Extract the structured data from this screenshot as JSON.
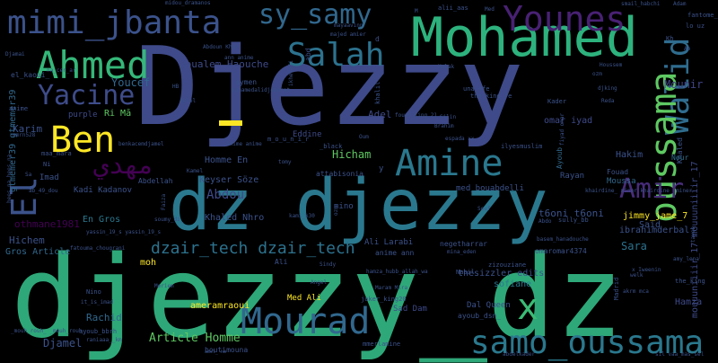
{
  "words": [
    {
      "text": "Djezzy",
      "color": "#3e4a89"
    },
    {
      "text": "djezzy_dz",
      "color": "#2ea879"
    },
    {
      "text": "dz djezzy",
      "color": "#2a788e"
    },
    {
      "text": "Mohamed",
      "color": "#2db27d"
    },
    {
      "text": "mimi_jbanta",
      "color": "#3b528b"
    },
    {
      "text": "sy_samy",
      "color": "#31688e"
    },
    {
      "text": "Younes",
      "color": "#482173"
    },
    {
      "text": "Ahmed",
      "color": "#35b779"
    },
    {
      "text": "Salah",
      "color": "#2c728e"
    },
    {
      "text": "Yacine",
      "color": "#3e4c8a"
    },
    {
      "text": "Ben",
      "color": "#fde725"
    },
    {
      "text": "Amine",
      "color": "#2a788e"
    },
    {
      "text": "Walid",
      "color": "#2f6c8e"
    },
    {
      "text": "oussama",
      "color": "#5ec962"
    },
    {
      "text": "Amir",
      "color": "#472c7a"
    },
    {
      "text": "Mourad",
      "color": "#31688e"
    },
    {
      "text": "samo_oussama",
      "color": "#2a788e"
    },
    {
      "text": "x",
      "color": "#3bbb75"
    },
    {
      "text": "El",
      "color": "#3b528b"
    },
    {
      "text": "مهدي",
      "color": "#440154"
    },
    {
      "text": "dzair_tech dzair_tech",
      "color": "#2c728e"
    },
    {
      "text": "Hicham",
      "color": "#5ec962"
    },
    {
      "text": "Karim",
      "color": "#3b528b"
    },
    {
      "text": "Boualem Haouche",
      "color": "#3e4a89"
    },
    {
      "text": "Youcef",
      "color": "#31688e"
    },
    {
      "text": "Article Homme",
      "color": "#5ec962"
    },
    {
      "text": "t6oni t6oni",
      "color": "#3b528b"
    },
    {
      "text": "Sara",
      "color": "#2c728e"
    },
    {
      "text": "Abdou",
      "color": "#3e4a89"
    },
    {
      "text": "Rachid",
      "color": "#31688e"
    },
    {
      "text": "Djamel",
      "color": "#3b528b"
    },
    {
      "text": "Hamza",
      "color": "#3e4a89"
    },
    {
      "text": "Mounir",
      "color": "#414487"
    },
    {
      "text": "Hakim",
      "color": "#3b528b"
    },
    {
      "text": "Adel",
      "color": "#3e4a89"
    },
    {
      "text": "Eddine",
      "color": "#3e4a89"
    },
    {
      "text": "Med Ali",
      "color": "#fde725"
    },
    {
      "text": "Sad Dam",
      "color": "#3e4a89"
    },
    {
      "text": "sofiane",
      "color": "#2a788e"
    },
    {
      "text": "Said",
      "color": "#3b528b"
    },
    {
      "text": "Rayan",
      "color": "#3b528b"
    },
    {
      "text": "Moussa",
      "color": "#31688e"
    },
    {
      "text": "Khaled Nhro",
      "color": "#3b528b"
    },
    {
      "text": "Keyser Söze",
      "color": "#3b528b"
    },
    {
      "text": "othmane1981",
      "color": "#440154"
    },
    {
      "text": "Hichem",
      "color": "#3b528b"
    },
    {
      "text": "Gros Article",
      "color": "#31688e"
    },
    {
      "text": "En Gros",
      "color": "#2a788e"
    },
    {
      "text": "moh",
      "color": "#fde725"
    },
    {
      "text": "Ri Mā",
      "color": "#5ec962"
    },
    {
      "text": "purple",
      "color": "#3e4a89"
    },
    {
      "text": "Homme En",
      "color": "#3b528b"
    },
    {
      "text": "Kadi Kadanov",
      "color": "#3b528b"
    },
    {
      "text": "Abdellah",
      "color": "#3b528b"
    },
    {
      "text": "Imad",
      "color": "#3b528b"
    },
    {
      "text": "Ali Larabi",
      "color": "#3b528b"
    },
    {
      "text": "ameramraoui",
      "color": "#fde725"
    },
    {
      "text": "thesizzler edits",
      "color": "#3b528b"
    },
    {
      "text": "Dal Queen",
      "color": "#3b528b"
    },
    {
      "text": "ayoub_dsn_",
      "color": "#3b528b"
    },
    {
      "text": "omar iyad",
      "color": "#3e4a89"
    },
    {
      "text": "jimmy_jame_7",
      "color": "#fde725"
    },
    {
      "text": "ibrahimderbal",
      "color": "#3b528b"
    },
    {
      "text": "gtmemer39 gtmemer39",
      "color": "#31688e"
    },
    {
      "text": "mouuuniiiir_17 mouuuniiiir_17",
      "color": "#3e4a89"
    },
    {
      "text": "Fouad",
      "color": "#3b528b"
    },
    {
      "text": "Ayoub",
      "color": "#31688e"
    },
    {
      "text": "Khaled",
      "color": "#3b528b"
    },
    {
      "text": "Nour",
      "color": "#2c728e"
    },
    {
      "text": "Kader",
      "color": "#3b528b"
    },
    {
      "text": "Madrid",
      "color": "#3b528b"
    },
    {
      "text": "Nabil",
      "color": "#3b528b"
    },
    {
      "text": "zizouziane",
      "color": "#3b528b"
    },
    {
      "text": "anime ann",
      "color": "#3b528b"
    },
    {
      "text": "omaromar4374",
      "color": "#3b528b"
    },
    {
      "text": "negetharrar",
      "color": "#3b528b"
    },
    {
      "text": "sully_bb",
      "color": "#3b528b"
    },
    {
      "text": "una_efe",
      "color": "#3b528b"
    },
    {
      "text": "the_king fe",
      "color": "#3b528b"
    },
    {
      "text": "fouad_king_21",
      "color": "#3b528b"
    },
    {
      "text": "alii_aas",
      "color": "#3b528b"
    },
    {
      "text": "mayaavinn",
      "color": "#3b528b"
    },
    {
      "text": "ann anime",
      "color": "#3b528b"
    },
    {
      "text": "aymen",
      "color": "#3b528b"
    },
    {
      "text": "Abdoun Khan",
      "color": "#3b528b"
    },
    {
      "text": "el_kaoui_",
      "color": "#3b528b"
    },
    {
      "text": "midou_dramanos",
      "color": "#3b528b"
    },
    {
      "text": "Djamai",
      "color": "#3b528b"
    },
    {
      "text": "Ablel",
      "color": "#3b528b"
    },
    {
      "text": "Silin",
      "color": "#3b528b"
    },
    {
      "text": "Brahim",
      "color": "#3b528b"
    },
    {
      "text": "espada xx",
      "color": "#3b528b"
    },
    {
      "text": "ilyesmuslim",
      "color": "#3b528b"
    },
    {
      "text": "smail_habchi",
      "color": "#3b528b"
    },
    {
      "text": "Adam",
      "color": "#3b528b"
    },
    {
      "text": "fantome_ee",
      "color": "#3b528b"
    },
    {
      "text": "lo uz",
      "color": "#3b528b"
    },
    {
      "text": "Kh",
      "color": "#3b528b"
    },
    {
      "text": "Ab",
      "color": "#3b528b"
    },
    {
      "text": "djking",
      "color": "#3b528b"
    },
    {
      "text": "Reda",
      "color": "#3b528b"
    },
    {
      "text": "ozm",
      "color": "#3b528b"
    },
    {
      "text": "Houssem",
      "color": "#3b528b"
    },
    {
      "text": "Malak",
      "color": "#3b528b"
    },
    {
      "text": "khairdine_ miner khairdine_ miner",
      "color": "#3b528b"
    },
    {
      "text": "tayeb",
      "color": "#3b528b"
    },
    {
      "text": "Abdo",
      "color": "#3b528b"
    },
    {
      "text": "basem_hanadouche",
      "color": "#3b528b"
    },
    {
      "text": "x Iweenin",
      "color": "#3b528b"
    },
    {
      "text": "akrm mca",
      "color": "#3b528b"
    },
    {
      "text": "Meriem",
      "color": "#3b528b"
    },
    {
      "text": "Angel",
      "color": "#3b528b"
    },
    {
      "text": "joker_king20",
      "color": "#3b528b"
    },
    {
      "text": "Maram Mira",
      "color": "#3b528b"
    },
    {
      "text": "Nino",
      "color": "#3b528b"
    },
    {
      "text": "it_is_imad",
      "color": "#3b528b"
    },
    {
      "text": "ayoub_bbrh",
      "color": "#3b528b"
    },
    {
      "text": "boutimouna",
      "color": "#3b528b"
    },
    {
      "text": "amel_ hm",
      "color": "#3b528b"
    },
    {
      "text": "mmerlamine",
      "color": "#3b528b"
    },
    {
      "text": "ikhelafi",
      "color": "#3b528b"
    },
    {
      "text": "majed amier",
      "color": "#3b528b"
    },
    {
      "text": "attabisonia",
      "color": "#3b528b"
    },
    {
      "text": "med_bouabdelli",
      "color": "#3b528b"
    },
    {
      "text": "yassin_19_s yassin_19_s",
      "color": "#3b528b"
    },
    {
      "text": "soumy_dz_",
      "color": "#3b528b"
    },
    {
      "text": "Faiza",
      "color": "#3b528b"
    },
    {
      "text": "Souf",
      "color": "#3b528b"
    },
    {
      "text": "mina_eden",
      "color": "#3b528b"
    },
    {
      "text": "welk",
      "color": "#3b528b"
    },
    {
      "text": "sil vaa_mas_sel",
      "color": "#3b528b"
    },
    {
      "text": "abdelkader",
      "color": "#3b528b"
    },
    {
      "text": "_mouh_rouh_ _mouh_rouh_",
      "color": "#3b528b"
    },
    {
      "text": "hees_na hees_na",
      "color": "#3b528b"
    },
    {
      "text": "mmrn528",
      "color": "#3b528b"
    },
    {
      "text": "ab_49_dou",
      "color": "#3b528b"
    },
    {
      "text": "Sa",
      "color": "#3b528b"
    },
    {
      "text": "Ni",
      "color": "#3b528b"
    },
    {
      "text": "na_cer_ar",
      "color": "#3b528b"
    },
    {
      "text": "mohamedalidjebarat",
      "color": "#3b528b"
    },
    {
      "text": "raniaaa__km",
      "color": "#3b528b"
    },
    {
      "text": "fatouma_chougrani",
      "color": "#3b528b"
    },
    {
      "text": "maa_mara",
      "color": "#3b528b"
    },
    {
      "text": "anime anime",
      "color": "#3b528b"
    },
    {
      "text": "benkacemdjamel",
      "color": "#3b528b"
    },
    {
      "text": "hamza_hubb_allah_wa",
      "color": "#3b528b"
    },
    {
      "text": "Ali",
      "color": "#3b528b"
    },
    {
      "text": "Med",
      "color": "#3b528b"
    },
    {
      "text": "M",
      "color": "#3b528b"
    },
    {
      "text": "HB",
      "color": "#3b528b"
    },
    {
      "text": "abd",
      "color": "#3b528b"
    },
    {
      "text": "_black",
      "color": "#3b528b"
    },
    {
      "text": "Kamel",
      "color": "#3b528b"
    },
    {
      "text": "m_o_u_n_i_r",
      "color": "#3b528b"
    },
    {
      "text": "khalil",
      "color": "#3b528b"
    },
    {
      "text": "fiyad omar",
      "color": "#3b528b"
    },
    {
      "text": "amy_lena",
      "color": "#3b528b"
    },
    {
      "text": "ozm",
      "color": "#3b528b"
    },
    {
      "text": "kami_k30",
      "color": "#3b528b"
    },
    {
      "text": "tomy",
      "color": "#3b528b"
    },
    {
      "text": "anime",
      "color": "#3b528b"
    },
    {
      "text": "the_king",
      "color": "#3b528b"
    },
    {
      "text": "Ri",
      "color": "#3b528b"
    },
    {
      "text": "Oum",
      "color": "#3b528b"
    },
    {
      "text": "Sindy",
      "color": "#3b528b"
    },
    {
      "text": "mino",
      "color": "#3b528b"
    },
    {
      "text": "y",
      "color": "#3b528b"
    },
    {
      "text": "d",
      "color": "#3b528b"
    },
    {
      "text": "m",
      "color": "#3b528b"
    }
  ]
}
